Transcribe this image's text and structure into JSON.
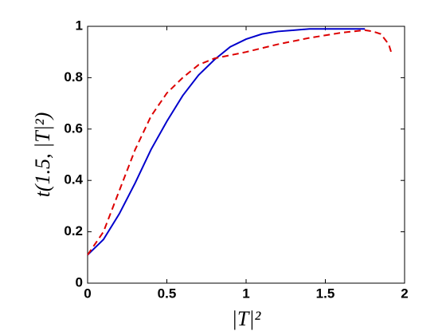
{
  "chart_data": {
    "type": "line",
    "x_label": "|T|²",
    "y_label": "t(1.5, |T|²)",
    "xlim": [
      0,
      2
    ],
    "xticks": [
      0,
      0.5,
      1,
      1.5,
      2
    ],
    "ylim": [
      0,
      1
    ],
    "yticks": [
      0,
      0.2,
      0.4,
      0.6,
      0.8,
      1
    ],
    "series": [
      {
        "color": "#0000cc",
        "style": "solid",
        "x": [
          0,
          0.1,
          0.2,
          0.3,
          0.4,
          0.5,
          0.6,
          0.7,
          0.8,
          0.9,
          1.0,
          1.1,
          1.2,
          1.3,
          1.4,
          1.5,
          1.6,
          1.7,
          1.75
        ],
        "values": [
          0.11,
          0.17,
          0.27,
          0.39,
          0.52,
          0.63,
          0.73,
          0.81,
          0.87,
          0.92,
          0.95,
          0.97,
          0.98,
          0.985,
          0.99,
          0.99,
          0.99,
          0.99,
          0.99
        ]
      },
      {
        "color": "#dd0000",
        "style": "dashed",
        "x": [
          0,
          0.1,
          0.2,
          0.3,
          0.4,
          0.5,
          0.6,
          0.7,
          0.8,
          1.0,
          1.2,
          1.4,
          1.6,
          1.75,
          1.8,
          1.85,
          1.9,
          1.92
        ],
        "values": [
          0.11,
          0.2,
          0.36,
          0.52,
          0.65,
          0.74,
          0.8,
          0.85,
          0.875,
          0.9,
          0.93,
          0.955,
          0.975,
          0.985,
          0.98,
          0.97,
          0.93,
          0.89
        ]
      }
    ]
  }
}
